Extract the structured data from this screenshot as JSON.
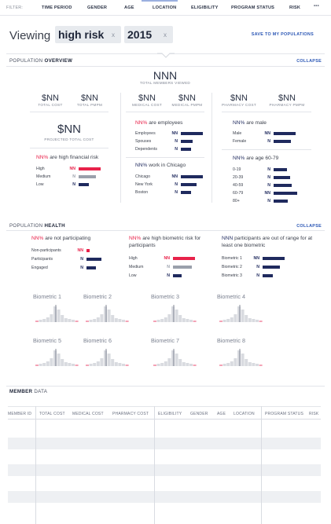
{
  "filter": {
    "label": "FILTER:",
    "items": [
      "TIME PERIOD",
      "GENDER",
      "AGE",
      "LOCATION",
      "ELIGIBILITY",
      "PROGRAM STATUS",
      "RISK"
    ],
    "more": "•••"
  },
  "viewing": {
    "prefix": "Viewing",
    "chips": [
      {
        "label": "high risk",
        "remove": "x"
      },
      {
        "label": "2015",
        "remove": "x"
      }
    ],
    "save": "SAVE TO MY POPULATIONS"
  },
  "overview": {
    "title_light": "POPULATION",
    "title_bold": "OVERVIEW",
    "collapse": "COLLAPSE",
    "total_members": {
      "value": "NNN",
      "label": "TOTAL MEMBERS VIEWED"
    },
    "cost": [
      {
        "value": "$NN",
        "label": "TOTAL COST"
      },
      {
        "value": "$NN",
        "label": "TOTAL PMPM"
      },
      {
        "value": "$NN",
        "label": "MEDICAL COST"
      },
      {
        "value": "$NN",
        "label": "MEDICAL PMPM"
      },
      {
        "value": "$NN",
        "label": "PHARMACY COST"
      },
      {
        "value": "$NN",
        "label": "PHARMACY PMPM"
      }
    ],
    "projected": {
      "value": "$NN",
      "label": "PROJECTED TOTAL COST"
    },
    "financial": {
      "lead_num": "NN%",
      "lead_text": "are high financial risk",
      "rows": [
        {
          "label": "High",
          "value": "NN",
          "level": 1.0,
          "color": "#e8224a"
        },
        {
          "label": "Medium",
          "value": "N",
          "level": 0.8,
          "color": "#9aa0ab"
        },
        {
          "label": "Low",
          "value": "N",
          "level": 0.45,
          "color": "#1f2a5e"
        }
      ]
    },
    "employees": {
      "lead_num": "NN%",
      "lead_text": "are employees",
      "rows": [
        {
          "label": "Employees",
          "value": "NN",
          "level": 1.0
        },
        {
          "label": "Spouses",
          "value": "N",
          "level": 0.55
        },
        {
          "label": "Dependents",
          "value": "N",
          "level": 0.45
        }
      ]
    },
    "chicago": {
      "lead_num": "NN%",
      "lead_text": "work in Chicago",
      "rows": [
        {
          "label": "Chicago",
          "value": "NN",
          "level": 1.0
        },
        {
          "label": "New York",
          "value": "N",
          "level": 0.7
        },
        {
          "label": "Boston",
          "value": "N",
          "level": 0.45
        }
      ]
    },
    "male": {
      "lead_num": "NN%",
      "lead_text": "are male",
      "rows": [
        {
          "label": "Male",
          "value": "NN",
          "level": 1.0
        },
        {
          "label": "Female",
          "value": "N",
          "level": 0.8
        }
      ]
    },
    "age": {
      "lead_num": "NN%",
      "lead_text": "are age 60-79",
      "rows": [
        {
          "label": "0-19",
          "value": "N",
          "level": 0.55
        },
        {
          "label": "20-39",
          "value": "N",
          "level": 0.7
        },
        {
          "label": "40-59",
          "value": "N",
          "level": 0.75
        },
        {
          "label": "60-79",
          "value": "NN",
          "level": 1.0
        },
        {
          "label": "80+",
          "value": "N",
          "level": 0.6
        }
      ]
    }
  },
  "health": {
    "title_light": "POPULATION",
    "title_bold": "HEALTH",
    "collapse": "COLLAPSE",
    "participating": {
      "lead_num": "NN%",
      "lead_text": "are not participating",
      "rows": [
        {
          "label": "Non-participants",
          "value": "NN",
          "level": 0.2,
          "color": "#e8224a"
        },
        {
          "label": "Participants",
          "value": "N",
          "level": 0.85,
          "color": "#1f2a5e"
        },
        {
          "label": "Engaged",
          "value": "N",
          "level": 0.55,
          "color": "#1f2a5e"
        }
      ]
    },
    "biometric_risk": {
      "lead_num": "NN%",
      "lead_text": "are high biometric risk for participants",
      "rows": [
        {
          "label": "High",
          "value": "NN",
          "level": 1.0,
          "color": "#e8224a"
        },
        {
          "label": "Medium",
          "value": "N",
          "level": 0.85,
          "color": "#9aa0ab"
        },
        {
          "label": "Low",
          "value": "N",
          "level": 0.4,
          "color": "#1f2a5e"
        }
      ]
    },
    "out_of_range": {
      "lead_num": "NNN",
      "lead_text": "participants are out of range for at least one biometric",
      "rows": [
        {
          "label": "Biometric 1",
          "value": "NN",
          "level": 1.0
        },
        {
          "label": "Biometric 2",
          "value": "N",
          "level": 0.8
        },
        {
          "label": "Biometric 3",
          "value": "N",
          "level": 0.45
        }
      ]
    },
    "biometrics": [
      "Biometric 1",
      "Biometric 2",
      "Biometric 3",
      "Biometric 4",
      "Biometric 5",
      "Biometric 6",
      "Biometric 7",
      "Biometric 8"
    ]
  },
  "member": {
    "title_bold": "MEMBER",
    "title_light": "DATA",
    "columns": [
      "MEMBER ID",
      "TOTAL COST",
      "MEDICAL COST",
      "PHARMACY COST",
      "ELIGIBILITY",
      "GENDER",
      "AGE",
      "LOCATION",
      "PROGRAM STATUS",
      "RISK"
    ]
  },
  "colors": {
    "navy": "#1f2a5e",
    "red": "#e8224a",
    "gray": "#9aa0ab",
    "accent": "#2b57b5"
  }
}
